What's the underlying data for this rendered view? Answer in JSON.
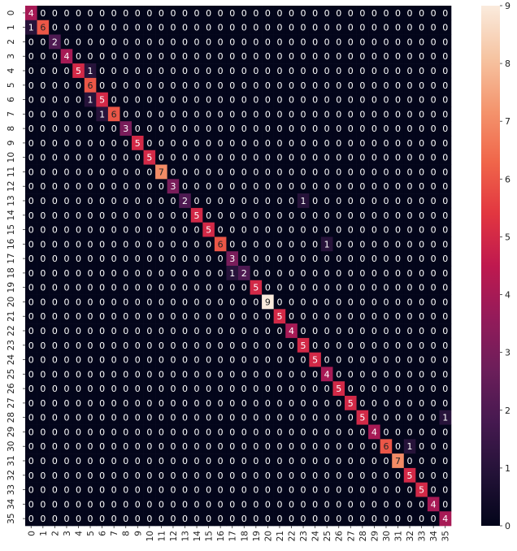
{
  "chart_data": {
    "type": "heatmap",
    "title": "",
    "xlabel": "",
    "ylabel": "",
    "x_labels": [
      "0",
      "1",
      "2",
      "3",
      "4",
      "5",
      "6",
      "7",
      "8",
      "9",
      "10",
      "11",
      "12",
      "13",
      "14",
      "15",
      "16",
      "17",
      "18",
      "19",
      "20",
      "21",
      "22",
      "23",
      "24",
      "25",
      "26",
      "27",
      "28",
      "29",
      "30",
      "31",
      "32",
      "33",
      "34",
      "35"
    ],
    "y_labels": [
      "0",
      "1",
      "2",
      "3",
      "4",
      "5",
      "6",
      "7",
      "8",
      "9",
      "10",
      "11",
      "12",
      "13",
      "14",
      "15",
      "16",
      "17",
      "18",
      "19",
      "20",
      "21",
      "22",
      "23",
      "24",
      "25",
      "26",
      "27",
      "28",
      "29",
      "30",
      "31",
      "32",
      "33",
      "34",
      "35"
    ],
    "size": 36,
    "default_value": 0,
    "nonzero_cells": [
      {
        "row": 0,
        "col": 0,
        "value": 4
      },
      {
        "row": 1,
        "col": 0,
        "value": 1
      },
      {
        "row": 1,
        "col": 1,
        "value": 6
      },
      {
        "row": 2,
        "col": 2,
        "value": 2
      },
      {
        "row": 3,
        "col": 3,
        "value": 4
      },
      {
        "row": 4,
        "col": 4,
        "value": 5
      },
      {
        "row": 4,
        "col": 5,
        "value": 1
      },
      {
        "row": 5,
        "col": 5,
        "value": 6
      },
      {
        "row": 6,
        "col": 5,
        "value": 1
      },
      {
        "row": 6,
        "col": 6,
        "value": 5
      },
      {
        "row": 7,
        "col": 6,
        "value": 1
      },
      {
        "row": 7,
        "col": 7,
        "value": 6
      },
      {
        "row": 8,
        "col": 8,
        "value": 3
      },
      {
        "row": 9,
        "col": 9,
        "value": 5
      },
      {
        "row": 10,
        "col": 10,
        "value": 5
      },
      {
        "row": 11,
        "col": 11,
        "value": 7
      },
      {
        "row": 12,
        "col": 12,
        "value": 3
      },
      {
        "row": 13,
        "col": 13,
        "value": 2
      },
      {
        "row": 13,
        "col": 23,
        "value": 1
      },
      {
        "row": 14,
        "col": 14,
        "value": 5
      },
      {
        "row": 15,
        "col": 15,
        "value": 5
      },
      {
        "row": 16,
        "col": 16,
        "value": 6
      },
      {
        "row": 16,
        "col": 25,
        "value": 1
      },
      {
        "row": 17,
        "col": 17,
        "value": 3
      },
      {
        "row": 18,
        "col": 17,
        "value": 1
      },
      {
        "row": 18,
        "col": 18,
        "value": 2
      },
      {
        "row": 19,
        "col": 19,
        "value": 5
      },
      {
        "row": 20,
        "col": 20,
        "value": 9
      },
      {
        "row": 21,
        "col": 21,
        "value": 5
      },
      {
        "row": 22,
        "col": 22,
        "value": 4
      },
      {
        "row": 23,
        "col": 23,
        "value": 5
      },
      {
        "row": 24,
        "col": 24,
        "value": 5
      },
      {
        "row": 25,
        "col": 25,
        "value": 4
      },
      {
        "row": 26,
        "col": 26,
        "value": 5
      },
      {
        "row": 27,
        "col": 27,
        "value": 5
      },
      {
        "row": 28,
        "col": 28,
        "value": 5
      },
      {
        "row": 28,
        "col": 35,
        "value": 1
      },
      {
        "row": 29,
        "col": 29,
        "value": 4
      },
      {
        "row": 30,
        "col": 30,
        "value": 6
      },
      {
        "row": 30,
        "col": 32,
        "value": 1
      },
      {
        "row": 31,
        "col": 31,
        "value": 7
      },
      {
        "row": 32,
        "col": 32,
        "value": 5
      },
      {
        "row": 33,
        "col": 33,
        "value": 5
      },
      {
        "row": 34,
        "col": 34,
        "value": 4
      },
      {
        "row": 35,
        "col": 35,
        "value": 4
      }
    ],
    "colorbar": {
      "range": [
        0,
        9
      ],
      "ticks": [
        "0",
        "1",
        "2",
        "3",
        "4",
        "5",
        "6",
        "7",
        "8",
        "9"
      ],
      "colormap": "rocket",
      "low_color": "#03051A",
      "high_color": "#FAEBDD"
    },
    "grid": false,
    "legend": "colorbar-right"
  }
}
